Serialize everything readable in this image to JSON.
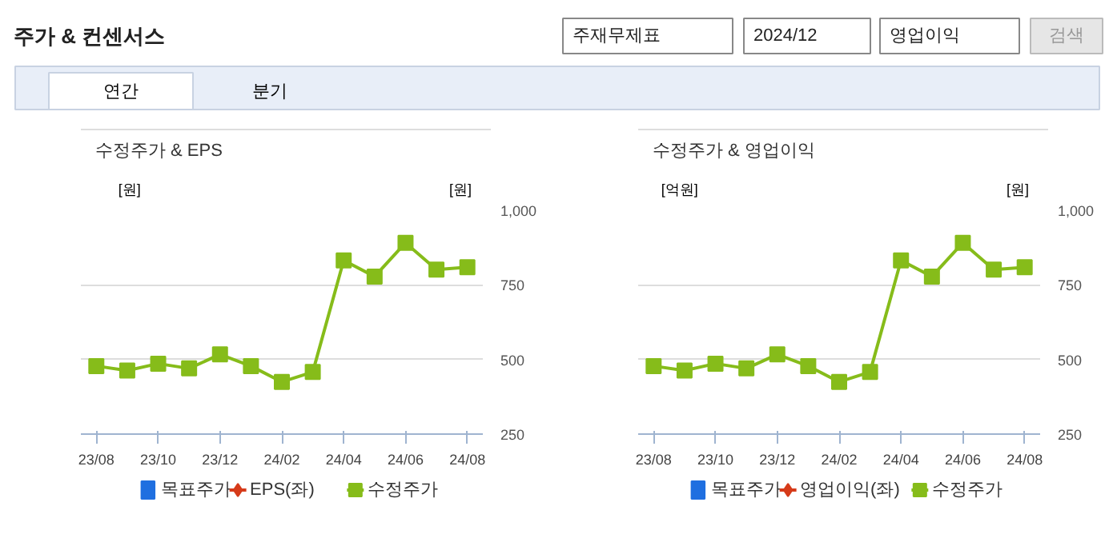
{
  "chart_data": [
    {
      "type": "other",
      "title": "주가 & 컨센서스",
      "annotations": [
        "주재무제표",
        "2024/12",
        "영업이익",
        "검색",
        "연간",
        "분기"
      ]
    },
    {
      "type": "line",
      "title": "수정주가 & EPS",
      "ylabel": "[원]",
      "y2label": "[원]",
      "categories": [
        "23/08",
        null,
        "23/10",
        null,
        "23/12",
        null,
        "24/02",
        null,
        "24/04",
        null,
        "24/06",
        null,
        "24/08"
      ],
      "y2lim": [
        250,
        1000
      ],
      "y2ticks": [
        250,
        500,
        750,
        {
          "value": 1000,
          "label": "1,000"
        }
      ],
      "grid": "y",
      "legend": "bottom",
      "series": [
        {
          "name": "목표주가",
          "type": "bar",
          "color": "#1f6fe0",
          "axis": "y2",
          "values": [
            null,
            null,
            null,
            null,
            null,
            null,
            null,
            null,
            null,
            null,
            null,
            null,
            null
          ]
        },
        {
          "name": "EPS(좌)",
          "type": "line",
          "marker": "diamond",
          "color": "#d63b1a",
          "values": [
            null,
            null,
            null,
            null,
            null,
            null,
            null,
            null,
            null,
            null,
            null,
            null,
            null
          ]
        },
        {
          "name": "수정주가",
          "type": "line",
          "marker": "square",
          "color": "#86bc1a",
          "axis": "y2",
          "values": [
            478,
            463,
            486,
            470,
            517,
            478,
            425,
            458,
            832,
            778,
            891,
            801,
            809
          ]
        }
      ]
    },
    {
      "type": "line",
      "title": "수정주가 & 영업이익",
      "ylabel": "[억원]",
      "y2label": "[원]",
      "categories": [
        "23/08",
        null,
        "23/10",
        null,
        "23/12",
        null,
        "24/02",
        null,
        "24/04",
        null,
        "24/06",
        null,
        "24/08"
      ],
      "y2lim": [
        250,
        1000
      ],
      "y2ticks": [
        250,
        500,
        750,
        {
          "value": 1000,
          "label": "1,000"
        }
      ],
      "grid": "y",
      "legend": "bottom",
      "series": [
        {
          "name": "목표주가",
          "type": "bar",
          "color": "#1f6fe0",
          "axis": "y2",
          "values": [
            null,
            null,
            null,
            null,
            null,
            null,
            null,
            null,
            null,
            null,
            null,
            null,
            null
          ]
        },
        {
          "name": "영업이익(좌)",
          "type": "line",
          "marker": "diamond",
          "color": "#d63b1a",
          "values": [
            null,
            null,
            null,
            null,
            null,
            null,
            null,
            null,
            null,
            null,
            null,
            null,
            null
          ]
        },
        {
          "name": "수정주가",
          "type": "line",
          "marker": "square",
          "color": "#86bc1a",
          "axis": "y2",
          "values": [
            478,
            463,
            486,
            470,
            517,
            478,
            425,
            458,
            832,
            778,
            891,
            801,
            809
          ]
        }
      ]
    }
  ]
}
